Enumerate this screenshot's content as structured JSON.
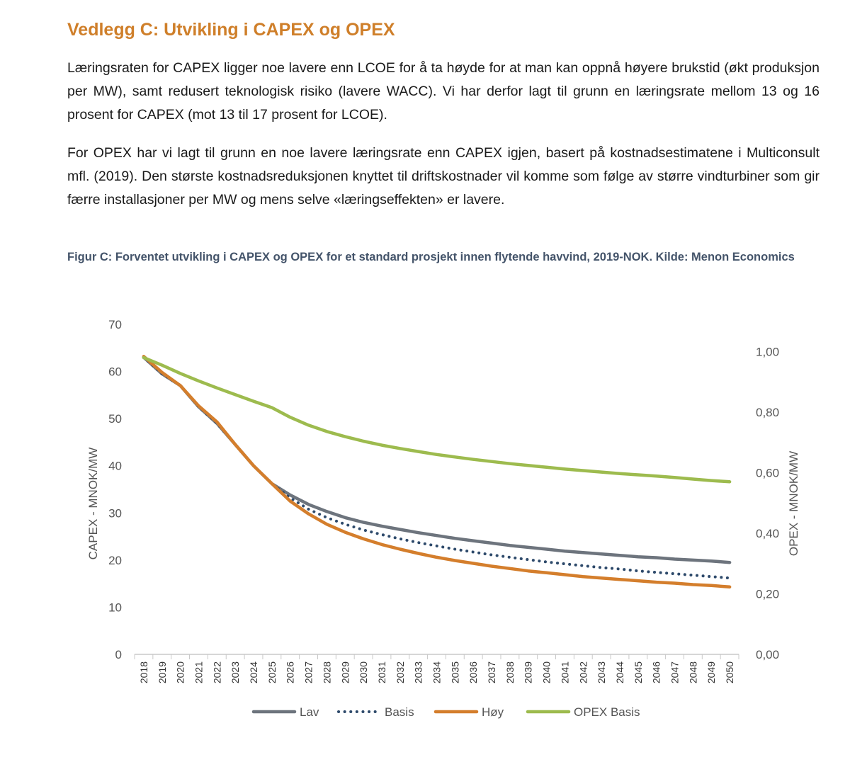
{
  "document": {
    "heading": "Vedlegg C: Utvikling i CAPEX og OPEX",
    "paragraphs": [
      "Læringsraten for CAPEX ligger noe lavere enn LCOE for å ta høyde for at man kan oppnå høyere brukstid (økt produksjon per MW), samt redusert teknologisk risiko (lavere WACC). Vi har derfor lagt til grunn en læringsrate mellom 13 og 16 prosent for CAPEX (mot 13 til 17 prosent for LCOE).",
      "For OPEX har vi lagt til grunn en noe lavere læringsrate enn CAPEX igjen, basert på kostnadsestimatene i Multiconsult mfl. (2019). Den største kostnadsreduksjonen knyttet til driftskostnader vil komme som følge av større vindturbiner som gir færre installasjoner per MW og mens selve «læringseffekten» er lavere."
    ],
    "figure_caption": "Figur C: Forventet utvikling i CAPEX og OPEX for et standard prosjekt innen flytende havvind, 2019-NOK. Kilde: Menon Economics"
  },
  "chart_data": {
    "type": "line",
    "title": "",
    "x": [
      2018,
      2019,
      2020,
      2021,
      2022,
      2023,
      2024,
      2025,
      2026,
      2027,
      2028,
      2029,
      2030,
      2031,
      2032,
      2033,
      2034,
      2035,
      2036,
      2037,
      2038,
      2039,
      2040,
      2041,
      2042,
      2043,
      2044,
      2045,
      2046,
      2047,
      2048,
      2049,
      2050
    ],
    "x_tick_labels": [
      "2018",
      "2019",
      "2020",
      "2021",
      "2022",
      "2023",
      "2024",
      "2025",
      "2026",
      "2027",
      "2028",
      "2029",
      "2030",
      "2031",
      "2032",
      "2033",
      "2034",
      "2035",
      "2036",
      "2037",
      "2038",
      "2039",
      "2040",
      "2041",
      "2042",
      "2043",
      "2044",
      "2045",
      "2046",
      "2047",
      "2048",
      "2049",
      "2050"
    ],
    "ylabel": "CAPEX - MNOK/MW",
    "ylim": [
      0,
      70
    ],
    "y_ticks": [
      0,
      10,
      20,
      30,
      40,
      50,
      60,
      70
    ],
    "y_tick_labels": [
      "0",
      "10",
      "20",
      "30",
      "40",
      "50",
      "60",
      "70"
    ],
    "y2label": "OPEX - MNOK/MW",
    "y2lim": [
      0,
      1.09
    ],
    "y2_ticks": [
      0,
      0.2,
      0.4,
      0.6,
      0.8,
      1.0
    ],
    "y2_tick_labels": [
      "0,00",
      "0,20",
      "0,40",
      "0,60",
      "0,80",
      "1,00"
    ],
    "grid": false,
    "legend_position": "bottom",
    "series": [
      {
        "name": "Lav",
        "axis": "left",
        "color": "#6d747d",
        "style": "solid",
        "values": [
          63.0,
          59.5,
          57.0,
          52.5,
          49.0,
          44.5,
          40.0,
          36.2,
          33.8,
          31.8,
          30.3,
          29.0,
          28.0,
          27.2,
          26.5,
          25.8,
          25.2,
          24.6,
          24.1,
          23.6,
          23.1,
          22.7,
          22.3,
          21.9,
          21.6,
          21.3,
          21.0,
          20.7,
          20.5,
          20.2,
          20.0,
          19.8,
          19.5
        ]
      },
      {
        "name": "Basis",
        "axis": "left",
        "color": "#2e4a6b",
        "style": "dotted",
        "values": [
          63.0,
          59.5,
          57.0,
          52.5,
          49.0,
          44.5,
          40.0,
          36.2,
          33.2,
          30.8,
          29.0,
          27.6,
          26.4,
          25.4,
          24.5,
          23.7,
          23.0,
          22.3,
          21.7,
          21.1,
          20.6,
          20.1,
          19.6,
          19.2,
          18.8,
          18.4,
          18.1,
          17.7,
          17.4,
          17.1,
          16.8,
          16.5,
          16.2
        ]
      },
      {
        "name": "Høy",
        "axis": "left",
        "color": "#d47e2c",
        "style": "solid",
        "values": [
          63.2,
          59.8,
          57.0,
          52.7,
          49.3,
          44.5,
          40.0,
          36.2,
          32.5,
          29.8,
          27.6,
          25.9,
          24.5,
          23.3,
          22.3,
          21.4,
          20.6,
          19.9,
          19.3,
          18.7,
          18.2,
          17.7,
          17.3,
          16.9,
          16.5,
          16.2,
          15.9,
          15.6,
          15.3,
          15.1,
          14.8,
          14.6,
          14.3
        ]
      },
      {
        "name": "OPEX Basis",
        "axis": "right",
        "color": "#9dbb4e",
        "style": "solid",
        "values": [
          0.98,
          0.955,
          0.928,
          0.903,
          0.88,
          0.858,
          0.836,
          0.815,
          0.783,
          0.757,
          0.736,
          0.719,
          0.704,
          0.691,
          0.68,
          0.67,
          0.66,
          0.652,
          0.644,
          0.637,
          0.63,
          0.624,
          0.618,
          0.612,
          0.607,
          0.602,
          0.597,
          0.593,
          0.589,
          0.584,
          0.579,
          0.574,
          0.57
        ]
      }
    ]
  }
}
